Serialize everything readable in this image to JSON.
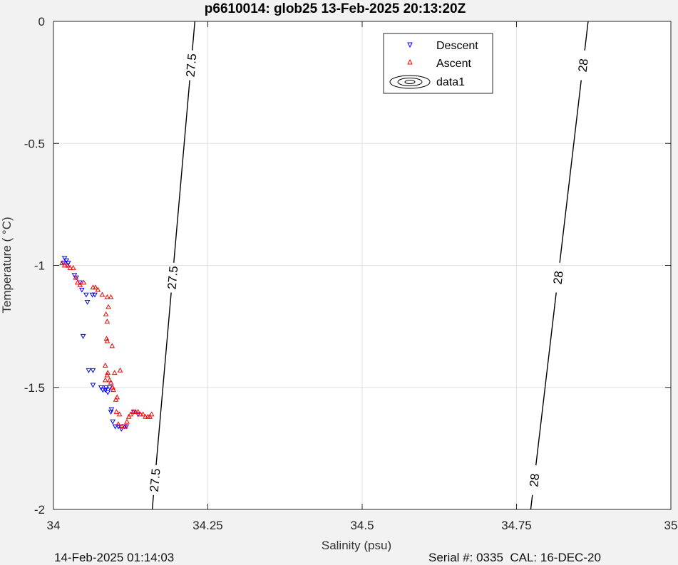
{
  "chart_data": {
    "type": "scatter",
    "title": "p6610014: glob25 13-Feb-2025 20:13:20Z",
    "xlabel": "Salinity (psu)",
    "ylabel": "Temperature (   °C)",
    "xlim": [
      34,
      35
    ],
    "ylim": [
      -2,
      0
    ],
    "x_ticks": [
      "34",
      "34.25",
      "34.5",
      "34.75",
      "35"
    ],
    "y_ticks": [
      "0",
      "-0.5",
      "-1",
      "-1.5",
      "-2"
    ],
    "grid": true,
    "legend_position": "top-right",
    "legend": [
      "Descent",
      "Ascent",
      "data1"
    ],
    "series": [
      {
        "name": "Descent",
        "marker": "triangle-down",
        "color": "#0000ff",
        "points": [
          [
            34.018,
            -0.97
          ],
          [
            34.021,
            -0.98
          ],
          [
            34.024,
            -0.99
          ],
          [
            34.016,
            -0.99
          ],
          [
            34.022,
            -1.0
          ],
          [
            34.034,
            -1.04
          ],
          [
            34.037,
            -1.05
          ],
          [
            34.043,
            -1.07
          ],
          [
            34.046,
            -1.1
          ],
          [
            34.053,
            -1.12
          ],
          [
            34.063,
            -1.12
          ],
          [
            34.067,
            -1.12
          ],
          [
            34.055,
            -1.15
          ],
          [
            34.048,
            -1.29
          ],
          [
            34.057,
            -1.43
          ],
          [
            34.064,
            -1.43
          ],
          [
            34.064,
            -1.49
          ],
          [
            34.077,
            -1.5
          ],
          [
            34.08,
            -1.51
          ],
          [
            34.084,
            -1.51
          ],
          [
            34.088,
            -1.52
          ],
          [
            34.091,
            -1.5
          ],
          [
            34.085,
            -1.5
          ],
          [
            34.094,
            -1.59
          ],
          [
            34.093,
            -1.6
          ],
          [
            34.096,
            -1.64
          ],
          [
            34.1,
            -1.66
          ],
          [
            34.105,
            -1.66
          ],
          [
            34.11,
            -1.67
          ],
          [
            34.115,
            -1.66
          ],
          [
            34.118,
            -1.66
          ],
          [
            34.13,
            -1.6
          ],
          [
            34.137,
            -1.61
          ]
        ]
      },
      {
        "name": "Ascent",
        "marker": "triangle-up",
        "color": "#ff0000",
        "points": [
          [
            34.014,
            -0.99
          ],
          [
            34.018,
            -1.0
          ],
          [
            34.023,
            -1.0
          ],
          [
            34.027,
            -1.01
          ],
          [
            34.032,
            -1.01
          ],
          [
            34.036,
            -1.05
          ],
          [
            34.039,
            -1.07
          ],
          [
            34.043,
            -1.08
          ],
          [
            34.049,
            -1.07
          ],
          [
            34.064,
            -1.09
          ],
          [
            34.068,
            -1.09
          ],
          [
            34.072,
            -1.1
          ],
          [
            34.079,
            -1.12
          ],
          [
            34.087,
            -1.13
          ],
          [
            34.093,
            -1.13
          ],
          [
            34.089,
            -1.17
          ],
          [
            34.085,
            -1.2
          ],
          [
            34.087,
            -1.23
          ],
          [
            34.086,
            -1.3
          ],
          [
            34.087,
            -1.31
          ],
          [
            34.095,
            -1.33
          ],
          [
            34.084,
            -1.41
          ],
          [
            34.088,
            -1.44
          ],
          [
            34.087,
            -1.45
          ],
          [
            34.084,
            -1.47
          ],
          [
            34.091,
            -1.47
          ],
          [
            34.099,
            -1.44
          ],
          [
            34.108,
            -1.43
          ],
          [
            34.093,
            -1.48
          ],
          [
            34.096,
            -1.5
          ],
          [
            34.097,
            -1.51
          ],
          [
            34.103,
            -1.54
          ],
          [
            34.101,
            -1.55
          ],
          [
            34.102,
            -1.6
          ],
          [
            34.107,
            -1.61
          ],
          [
            34.105,
            -1.65
          ],
          [
            34.111,
            -1.66
          ],
          [
            34.116,
            -1.66
          ],
          [
            34.119,
            -1.64
          ],
          [
            34.122,
            -1.62
          ],
          [
            34.125,
            -1.61
          ],
          [
            34.129,
            -1.6
          ],
          [
            34.133,
            -1.6
          ],
          [
            34.137,
            -1.6
          ],
          [
            34.141,
            -1.61
          ],
          [
            34.145,
            -1.61
          ],
          [
            34.149,
            -1.62
          ],
          [
            34.153,
            -1.62
          ],
          [
            34.156,
            -1.62
          ],
          [
            34.159,
            -1.61
          ]
        ]
      }
    ],
    "contours": [
      {
        "level": "27.5",
        "line": [
          [
            34.229,
            0
          ],
          [
            34.16,
            -2
          ]
        ],
        "label_y": [
          -0.18,
          -1.05,
          -1.88
        ]
      },
      {
        "level": "28",
        "line": [
          [
            34.866,
            0
          ],
          [
            34.773,
            -2
          ]
        ],
        "label_y": [
          -0.18,
          -1.05,
          -1.88
        ]
      }
    ]
  },
  "footer": {
    "left": "14-Feb-2025 01:14:03",
    "right": "Serial #: 0335  CAL: 16-DEC-20"
  }
}
